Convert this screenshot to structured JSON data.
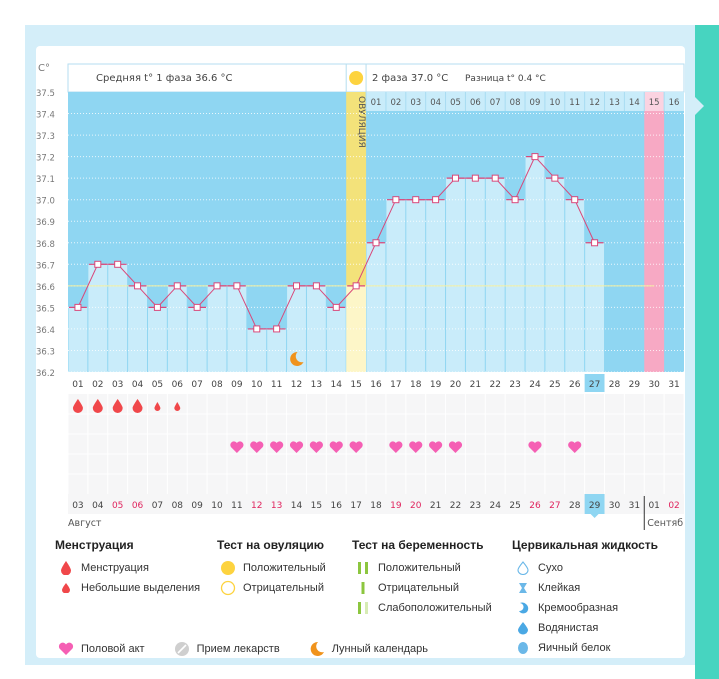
{
  "header": {
    "unit_label": "C°",
    "phase1_text": "Средняя t° 1 фаза 36.6 °C",
    "phase2_text": "2 фаза 37.0 °C",
    "diff_text": "Разница t° 0.4 °C",
    "ovulation_label": "ОВУЛЯЦИЯ"
  },
  "chart_data": {
    "type": "line",
    "title": "Базальная температура",
    "ylabel": "C°",
    "ylim": [
      36.2,
      37.5
    ],
    "yticks": [
      "37.5",
      "37.4",
      "37.3",
      "37.2",
      "37.1",
      "37.0",
      "36.9",
      "36.8",
      "36.7",
      "36.6",
      "36.5",
      "36.4",
      "36.3",
      "36.2"
    ],
    "cycle_days": [
      "01",
      "02",
      "03",
      "04",
      "05",
      "06",
      "07",
      "08",
      "09",
      "10",
      "11",
      "12",
      "13",
      "14",
      "15",
      "16",
      "17",
      "18",
      "19",
      "20",
      "21",
      "22",
      "23",
      "24",
      "25",
      "26",
      "27",
      "28",
      "29",
      "30",
      "31"
    ],
    "temperatures": [
      36.5,
      36.7,
      36.7,
      36.6,
      36.5,
      36.6,
      36.5,
      36.6,
      36.6,
      36.4,
      36.4,
      36.6,
      36.6,
      36.5,
      36.6,
      36.8,
      37.0,
      37.0,
      37.0,
      37.1,
      37.1,
      37.1,
      37.0,
      37.2,
      37.1,
      37.0,
      36.8
    ],
    "coverline": 36.6,
    "ovulation_day": 15,
    "luteal_day_labels": [
      "01",
      "02",
      "03",
      "04",
      "05",
      "06",
      "07",
      "08",
      "09",
      "10",
      "11",
      "12",
      "13",
      "14",
      "15",
      "16"
    ],
    "expected_period_day": 30,
    "current_day": 27,
    "moon_day": 12,
    "menstruation": [
      {
        "day": 1,
        "type": "heavy"
      },
      {
        "day": 2,
        "type": "heavy"
      },
      {
        "day": 3,
        "type": "heavy"
      },
      {
        "day": 4,
        "type": "heavy"
      },
      {
        "day": 5,
        "type": "light"
      },
      {
        "day": 6,
        "type": "light"
      }
    ],
    "intercourse_days": [
      9,
      10,
      11,
      12,
      13,
      14,
      15,
      17,
      18,
      19,
      20,
      24,
      26
    ],
    "calendar_dates": [
      "03",
      "04",
      "05",
      "06",
      "07",
      "08",
      "09",
      "10",
      "11",
      "12",
      "13",
      "14",
      "15",
      "16",
      "17",
      "18",
      "19",
      "20",
      "21",
      "22",
      "23",
      "24",
      "25",
      "26",
      "27",
      "28",
      "29",
      "30",
      "31",
      "01",
      "02"
    ],
    "weekend_dates_idx": [
      2,
      3,
      9,
      10,
      16,
      17,
      23,
      24,
      30
    ],
    "today_idx": 26,
    "month_labels": [
      {
        "label": "Август",
        "start_idx": 0
      },
      {
        "label": "Сентяб",
        "start_idx": 29
      }
    ]
  },
  "legend": {
    "menstruation": {
      "title": "Менструация",
      "items": [
        "Менструация",
        "Небольшие выделения"
      ]
    },
    "ovulation_test": {
      "title": "Тест на овуляцию",
      "items": [
        "Положительный",
        "Отрицательный"
      ]
    },
    "pregnancy_test": {
      "title": "Тест на беременность",
      "items": [
        "Положительный",
        "Отрицательный",
        "Слабоположительный"
      ]
    },
    "cervical": {
      "title": "Цервикальная жидкость",
      "items": [
        "Сухо",
        "Клейкая",
        "Кремообразная",
        "Водянистая",
        "Яичный белок"
      ]
    },
    "bottom": [
      "Половой акт",
      "Прием лекарств",
      "Лунный календарь"
    ]
  },
  "colors": {
    "plot_bg": "#8fd6f2",
    "bar_fill": "#c9ecfa",
    "line": "#d9487a",
    "ovulation": "#f7e99a",
    "expected_period": "#f7a9c4",
    "coverline": "#f5f0a0",
    "heart": "#f55fb4",
    "drop": "#f0474a",
    "moon": "#f0931c",
    "today": "#8fd6f2",
    "weekend_text": "#e0245e",
    "teal": "#47d4c0"
  }
}
